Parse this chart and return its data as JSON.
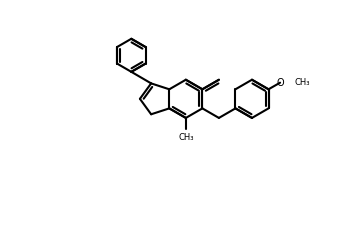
{
  "bg_color": "#ffffff",
  "line_color": "#000000",
  "line_width": 1.5,
  "fig_width": 3.52,
  "fig_height": 2.34,
  "dpi": 100,
  "xlim": [
    0,
    10
  ],
  "ylim": [
    0,
    7
  ]
}
